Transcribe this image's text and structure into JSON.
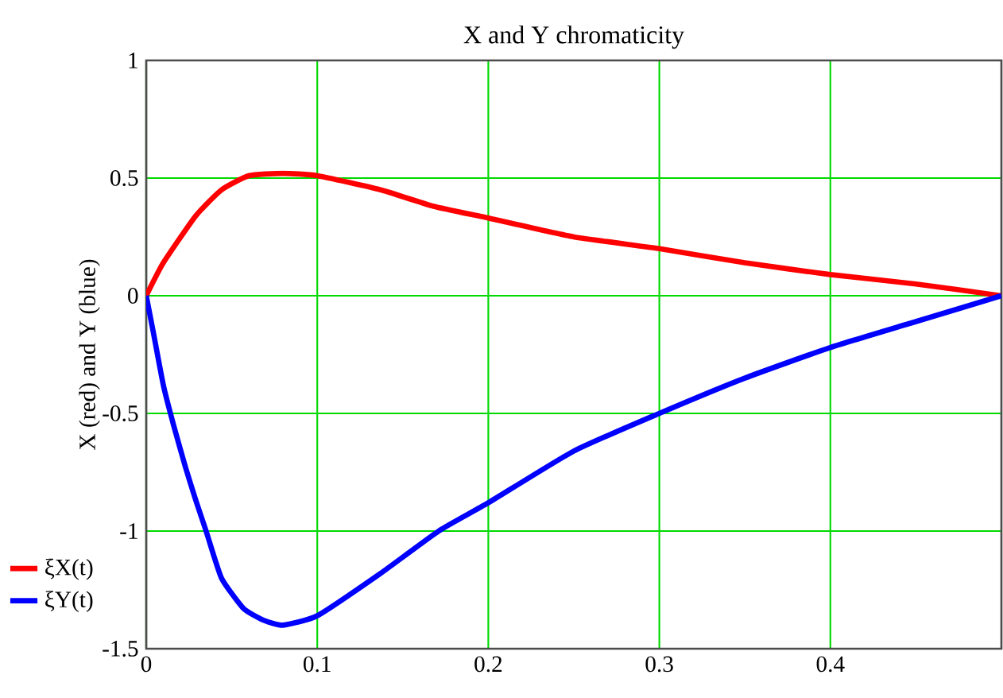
{
  "chart_data": {
    "type": "line",
    "title": "X and Y chromaticity",
    "ylabel": "X (red) and Y (blue)",
    "xlim": [
      0,
      0.5
    ],
    "ylim": [
      -1.5,
      1
    ],
    "xticks": [
      0,
      0.1,
      0.2,
      0.3,
      0.4
    ],
    "yticks": [
      -1.5,
      -1,
      -0.5,
      0,
      0.5,
      1
    ],
    "grid": true,
    "legend": "bottom left",
    "marker": "none",
    "line_style": "solid",
    "series": [
      {
        "name": "ξX(t)",
        "color": "#ff0000",
        "x": [
          0,
          0.01,
          0.029,
          0.044,
          0.06,
          0.08,
          0.1,
          0.137,
          0.168,
          0.2,
          0.25,
          0.3,
          0.35,
          0.4,
          0.45,
          0.5
        ],
        "values": [
          0,
          0.14,
          0.34,
          0.45,
          0.51,
          0.52,
          0.51,
          0.45,
          0.38,
          0.33,
          0.25,
          0.2,
          0.14,
          0.09,
          0.05,
          0
        ]
      },
      {
        "name": "ξY(t)",
        "color": "#0000ff",
        "x": [
          0,
          0.004,
          0.01,
          0.016,
          0.023,
          0.029,
          0.035,
          0.044,
          0.057,
          0.069,
          0.08,
          0.1,
          0.137,
          0.171,
          0.2,
          0.25,
          0.3,
          0.35,
          0.4,
          0.45,
          0.5
        ],
        "values": [
          0,
          -0.15,
          -0.38,
          -0.55,
          -0.73,
          -0.87,
          -1.0,
          -1.2,
          -1.33,
          -1.38,
          -1.4,
          -1.36,
          -1.18,
          -1.0,
          -0.88,
          -0.66,
          -0.5,
          -0.35,
          -0.22,
          -0.11,
          0
        ]
      }
    ]
  }
}
